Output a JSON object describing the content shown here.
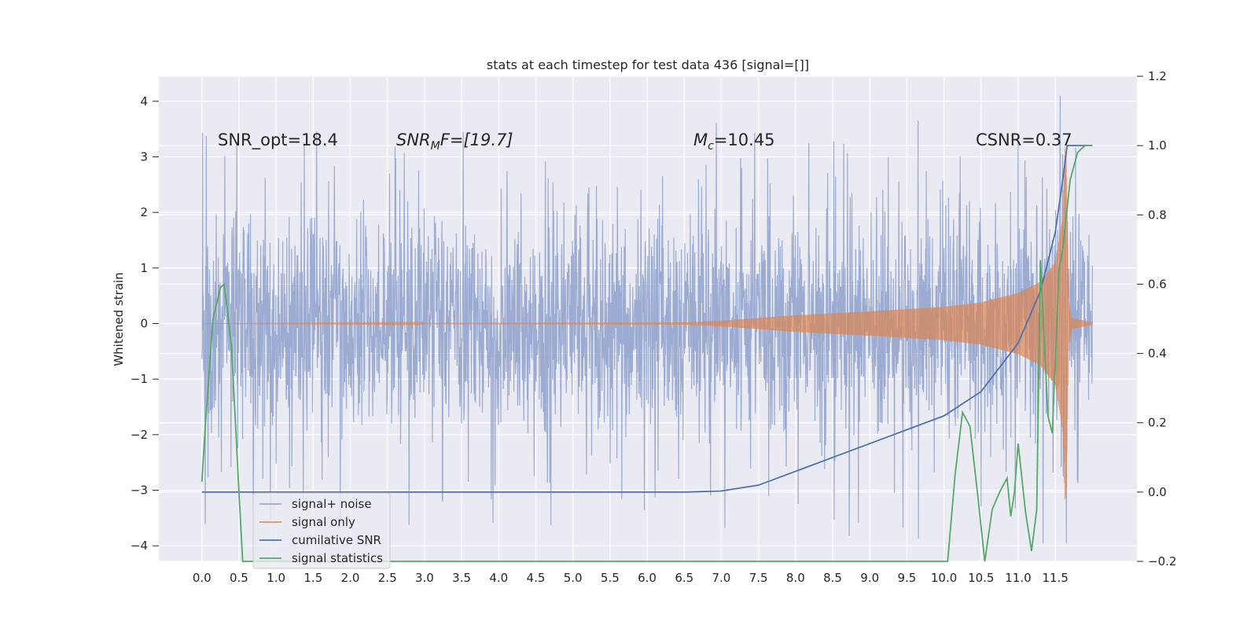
{
  "chart_data": {
    "type": "line",
    "title": "stats at each timestep for test data 436 [signal=[]]",
    "ylabel": "Whitened strain",
    "xlabel": "",
    "xlim": [
      -0.58,
      12.6
    ],
    "ylim": [
      -4.28,
      4.45
    ],
    "y2lim": [
      -0.2,
      1.2
    ],
    "x_ticks": [
      "0.0",
      "0.5",
      "1.0",
      "1.5",
      "2.0",
      "2.5",
      "3.0",
      "3.5",
      "4.0",
      "4.5",
      "5.0",
      "5.5",
      "6.0",
      "6.5",
      "7.0",
      "7.5",
      "8.0",
      "8.5",
      "9.0",
      "9.5",
      "10.0",
      "10.5",
      "11.0",
      "11.5"
    ],
    "y_ticks": [
      "−4",
      "−3",
      "−2",
      "−1",
      "0",
      "1",
      "2",
      "3",
      "4"
    ],
    "y2_ticks": [
      "−0.2",
      "0.0",
      "0.2",
      "0.4",
      "0.6",
      "0.8",
      "1.0",
      "1.2"
    ],
    "grid": true,
    "legend_position": "lower-left",
    "annotations": {
      "snr_opt": "SNR_opt=18.4",
      "snr_mf_main": "SNR",
      "snr_mf_sub": "M",
      "snr_mf_rest": "F=[19.7]",
      "mc_main": "M",
      "mc_sub": "c",
      "mc_rest": "=10.45",
      "csnr": "CSNR=0.37"
    },
    "series": [
      {
        "name": "signal+ noise",
        "color": "#8da0cb",
        "kind": "noise",
        "t_range": [
          0,
          12
        ],
        "envelope": [
          [
            0,
            2.0,
            -2.1
          ],
          [
            12,
            2.0,
            -2.1
          ]
        ],
        "spikes_max": [
          4.1,
          4.0
        ],
        "spikes_min": [
          -3.9,
          -3.9
        ]
      },
      {
        "name": "signal only",
        "color": "#dd8452",
        "kind": "chirp",
        "amplitude": [
          [
            0,
            0.0
          ],
          [
            6.5,
            0.02
          ],
          [
            7.0,
            0.05
          ],
          [
            8.0,
            0.15
          ],
          [
            9.0,
            0.22
          ],
          [
            10.0,
            0.3
          ],
          [
            10.5,
            0.38
          ],
          [
            11.0,
            0.55
          ],
          [
            11.3,
            0.75
          ],
          [
            11.5,
            1.1
          ],
          [
            11.6,
            1.9
          ],
          [
            11.63,
            3.2
          ],
          [
            11.65,
            3.0
          ],
          [
            11.68,
            0.4
          ],
          [
            11.72,
            0.1
          ],
          [
            12.0,
            0.02
          ]
        ]
      },
      {
        "name": "cumilative SNR",
        "color": "#4c72b0",
        "axis": "right",
        "points": [
          [
            0,
            0.0
          ],
          [
            6.5,
            0.0
          ],
          [
            7.0,
            0.003
          ],
          [
            7.5,
            0.02
          ],
          [
            8.0,
            0.06
          ],
          [
            8.5,
            0.1
          ],
          [
            9.0,
            0.14
          ],
          [
            9.5,
            0.18
          ],
          [
            10.0,
            0.22
          ],
          [
            10.5,
            0.29
          ],
          [
            11.0,
            0.43
          ],
          [
            11.3,
            0.58
          ],
          [
            11.5,
            0.75
          ],
          [
            11.6,
            0.9
          ],
          [
            11.66,
            1.0
          ],
          [
            12.0,
            1.0
          ]
        ]
      },
      {
        "name": "signal statistics",
        "color": "#55a868",
        "axis": "right",
        "points": [
          [
            0,
            0.03
          ],
          [
            0.05,
            0.2
          ],
          [
            0.15,
            0.5
          ],
          [
            0.25,
            0.59
          ],
          [
            0.3,
            0.6
          ],
          [
            0.4,
            0.42
          ],
          [
            0.5,
            0.0
          ],
          [
            0.55,
            -0.2
          ],
          [
            10.05,
            -0.2
          ],
          [
            10.15,
            0.05
          ],
          [
            10.25,
            0.23
          ],
          [
            10.35,
            0.19
          ],
          [
            10.45,
            0.0
          ],
          [
            10.55,
            -0.2
          ],
          [
            10.65,
            -0.05
          ],
          [
            10.75,
            0.0
          ],
          [
            10.85,
            0.04
          ],
          [
            10.9,
            -0.07
          ],
          [
            10.95,
            0.0
          ],
          [
            11.0,
            0.14
          ],
          [
            11.1,
            -0.06
          ],
          [
            11.18,
            -0.17
          ],
          [
            11.25,
            -0.05
          ],
          [
            11.3,
            0.67
          ],
          [
            11.4,
            0.22
          ],
          [
            11.46,
            0.17
          ],
          [
            11.55,
            0.64
          ],
          [
            11.6,
            0.7
          ],
          [
            11.7,
            0.9
          ],
          [
            11.8,
            0.98
          ],
          [
            11.9,
            1.0
          ],
          [
            12.0,
            1.0
          ]
        ]
      }
    ]
  }
}
